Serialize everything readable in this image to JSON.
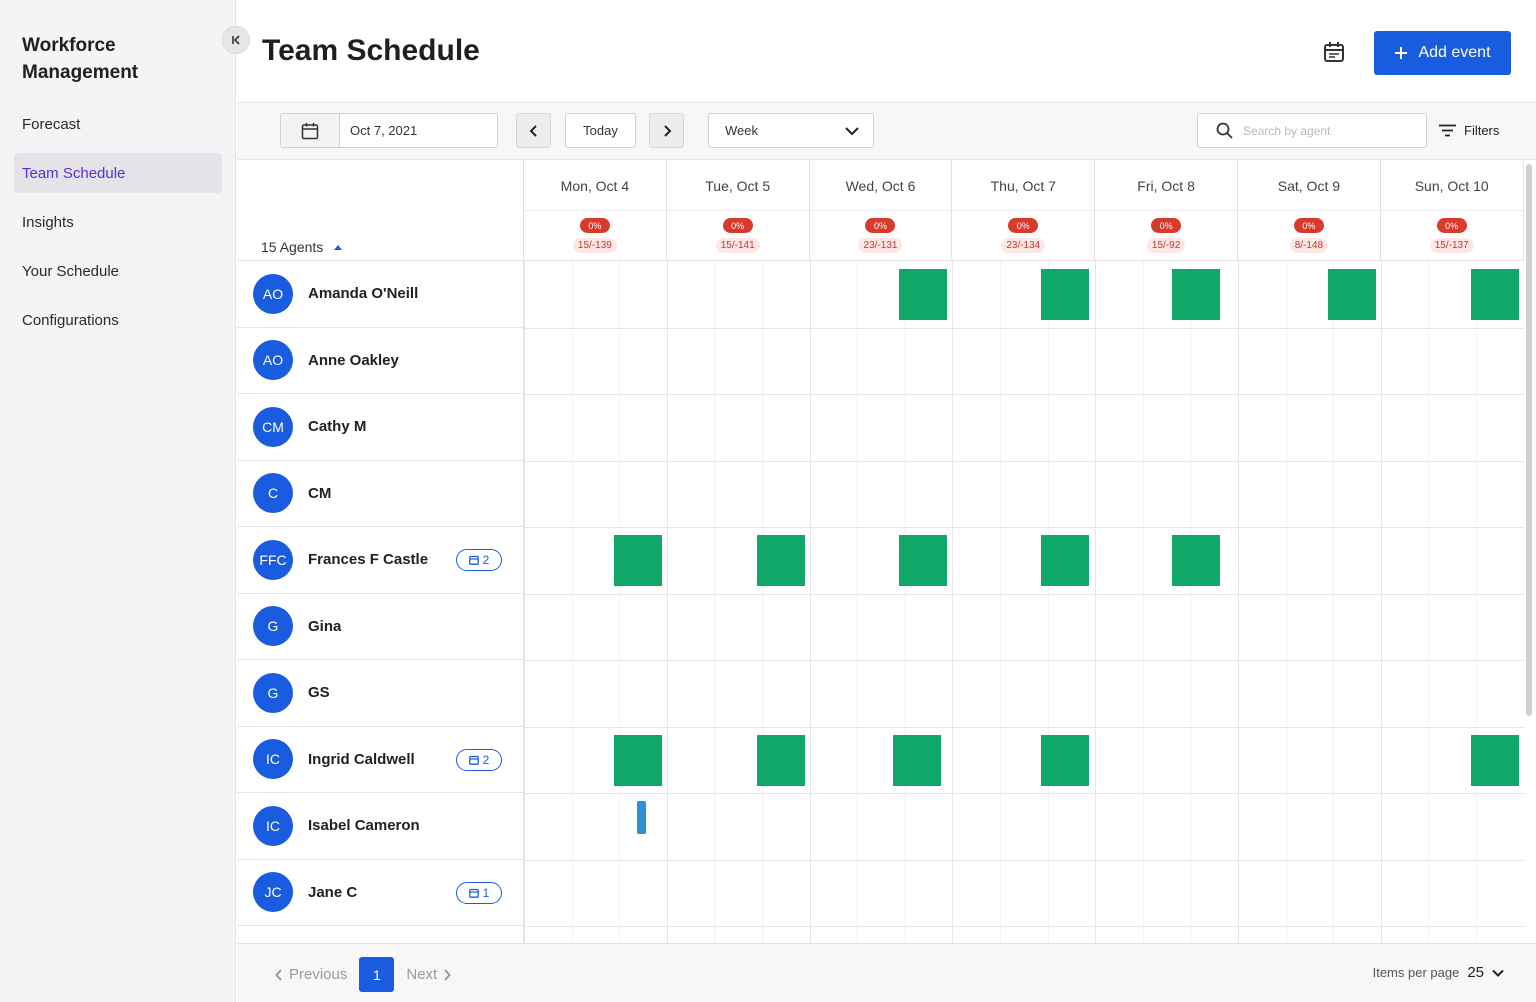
{
  "sidebar": {
    "brand": "Workforce Management",
    "items": [
      {
        "label": "Forecast",
        "active": false
      },
      {
        "label": "Team Schedule",
        "active": true
      },
      {
        "label": "Insights",
        "active": false
      },
      {
        "label": "Your Schedule",
        "active": false
      },
      {
        "label": "Configurations",
        "active": false
      }
    ]
  },
  "header": {
    "title": "Team Schedule",
    "add_event_label": "Add event"
  },
  "toolbar": {
    "date_value": "Oct 7, 2021",
    "today_label": "Today",
    "view_value": "Week",
    "search_placeholder": "Search by agent",
    "filters_label": "Filters"
  },
  "grid": {
    "agents_count": "15 Agents",
    "days": [
      {
        "label": "Mon, Oct 4",
        "pct": "0%",
        "ratio": "15/-139"
      },
      {
        "label": "Tue, Oct 5",
        "pct": "0%",
        "ratio": "15/-141"
      },
      {
        "label": "Wed, Oct 6",
        "pct": "0%",
        "ratio": "23/-131"
      },
      {
        "label": "Thu, Oct 7",
        "pct": "0%",
        "ratio": "23/-134"
      },
      {
        "label": "Fri, Oct 8",
        "pct": "0%",
        "ratio": "15/-92"
      },
      {
        "label": "Sat, Oct 9",
        "pct": "0%",
        "ratio": "8/-148"
      },
      {
        "label": "Sun, Oct 10",
        "pct": "0%",
        "ratio": "15/-137"
      }
    ],
    "agents": [
      {
        "initials": "AO",
        "name": "Amanda O'Neill",
        "events": ""
      },
      {
        "initials": "AO",
        "name": "Anne Oakley",
        "events": ""
      },
      {
        "initials": "CM",
        "name": "Cathy M",
        "events": ""
      },
      {
        "initials": "C",
        "name": "CM",
        "events": ""
      },
      {
        "initials": "FFC",
        "name": "Frances F Castle",
        "events": "2"
      },
      {
        "initials": "G",
        "name": "Gina",
        "events": ""
      },
      {
        "initials": "G",
        "name": "GS",
        "events": ""
      },
      {
        "initials": "IC",
        "name": "Ingrid Caldwell",
        "events": "2"
      },
      {
        "initials": "IC",
        "name": "Isabel Cameron",
        "events": ""
      },
      {
        "initials": "JC",
        "name": "Jane C",
        "events": "1"
      }
    ]
  },
  "footer": {
    "previous_label": "Previous",
    "page": "1",
    "next_label": "Next",
    "per_page_label": "Items per page",
    "per_page_value": "25"
  },
  "colors": {
    "accent": "#1a5ce0",
    "active_nav": "#5b2bd6",
    "shift": "#10a868",
    "break": "#2f8fd6",
    "alert": "#d93a2b"
  }
}
